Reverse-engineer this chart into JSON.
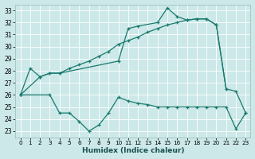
{
  "xlabel": "Humidex (Indice chaleur)",
  "xlim": [
    -0.5,
    23.5
  ],
  "ylim": [
    22.5,
    33.5
  ],
  "yticks": [
    23,
    24,
    25,
    26,
    27,
    28,
    29,
    30,
    31,
    32,
    33
  ],
  "xticks": [
    0,
    1,
    2,
    3,
    4,
    5,
    6,
    7,
    8,
    9,
    10,
    11,
    12,
    13,
    14,
    15,
    16,
    17,
    18,
    19,
    20,
    21,
    22,
    23
  ],
  "bg_color": "#cce8e8",
  "line_color": "#1a7a6e",
  "curves": [
    {
      "x": [
        0,
        1,
        2,
        3,
        4,
        10,
        11,
        12,
        14,
        15,
        16,
        17,
        18,
        19,
        20,
        21
      ],
      "y": [
        26.0,
        28.2,
        27.5,
        27.8,
        27.8,
        28.8,
        31.5,
        31.7,
        32.0,
        33.2,
        32.5,
        32.2,
        32.3,
        32.3,
        31.8,
        26.5
      ]
    },
    {
      "x": [
        0,
        3,
        4,
        5,
        6,
        7,
        8,
        9,
        10,
        11,
        12,
        13,
        14,
        15,
        16,
        17,
        18,
        19,
        20,
        21,
        22,
        23
      ],
      "y": [
        26.0,
        26.0,
        24.5,
        24.5,
        23.8,
        23.0,
        23.5,
        24.5,
        25.8,
        25.5,
        25.3,
        25.2,
        25.0,
        25.0,
        25.0,
        25.0,
        25.0,
        25.0,
        25.0,
        25.0,
        23.2,
        24.5
      ]
    },
    {
      "x": [
        0,
        2,
        3,
        4,
        5,
        6,
        7,
        8,
        9,
        10,
        11,
        12,
        13,
        14,
        15,
        16,
        17,
        18,
        19,
        20,
        21,
        22,
        23
      ],
      "y": [
        26.0,
        27.5,
        27.8,
        27.8,
        28.2,
        28.5,
        28.8,
        29.2,
        29.6,
        30.2,
        30.5,
        30.8,
        31.2,
        31.5,
        31.8,
        32.0,
        32.2,
        32.3,
        32.3,
        31.8,
        26.5,
        26.3,
        24.5
      ]
    }
  ]
}
